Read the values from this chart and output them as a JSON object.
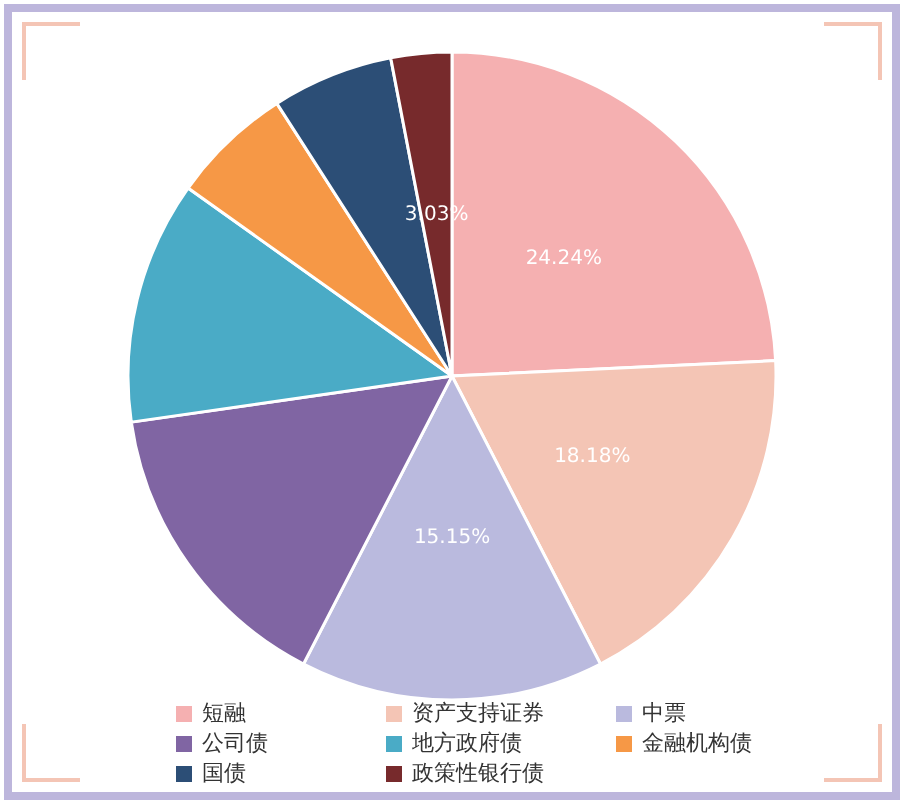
{
  "chart_data": {
    "type": "pie",
    "categories": [
      "短融",
      "资产支持证券",
      "中票",
      "公司债",
      "地方政府债",
      "金融机构债",
      "国债",
      "政策性银行债"
    ],
    "values": [
      24.24,
      18.18,
      15.15,
      15.15,
      12.12,
      6.06,
      6.06,
      3.03
    ],
    "colors": [
      "#f5b0b1",
      "#f4c5b5",
      "#babade",
      "#8065a3",
      "#4aabc6",
      "#f69846",
      "#2c4e76",
      "#772a2c"
    ],
    "value_labels": [
      "24.24%",
      "18.18%",
      "15.15%",
      null,
      null,
      null,
      null,
      "3.03%"
    ],
    "legend": "bottom"
  }
}
